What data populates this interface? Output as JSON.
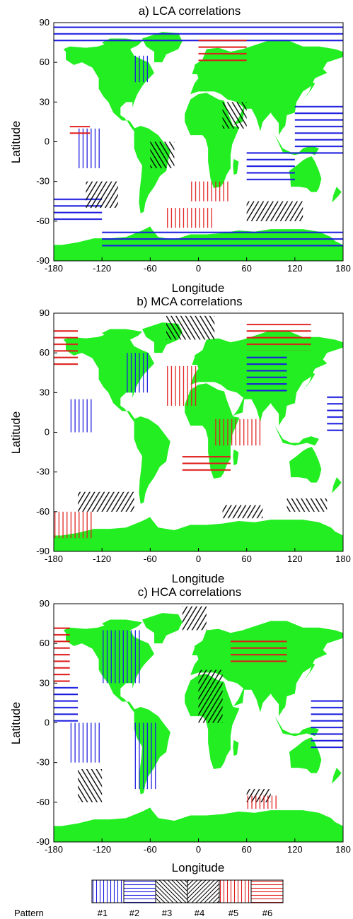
{
  "chart_data": [
    {
      "type": "map",
      "title": "a) LCA correlations",
      "xlabel": "Longitude",
      "ylabel": "Latitude",
      "xlim": [
        -180,
        180
      ],
      "ylim": [
        -90,
        90
      ],
      "xticks": [
        "-180",
        "-120",
        "-60",
        "0",
        "60",
        "120",
        "180"
      ],
      "yticks": [
        "90",
        "60",
        "30",
        "0",
        "-30",
        "-60",
        "-90"
      ],
      "regions": [
        {
          "pattern": 1,
          "lon": [
            -80,
            -60
          ],
          "lat": [
            45,
            65
          ]
        },
        {
          "pattern": 1,
          "lon": [
            -150,
            -120
          ],
          "lat": [
            -20,
            10
          ]
        },
        {
          "pattern": 2,
          "lon": [
            -180,
            180
          ],
          "lat": [
            75,
            88
          ]
        },
        {
          "pattern": 2,
          "lon": [
            120,
            180
          ],
          "lat": [
            -10,
            30
          ]
        },
        {
          "pattern": 2,
          "lon": [
            60,
            120
          ],
          "lat": [
            -30,
            -5
          ]
        },
        {
          "pattern": 2,
          "lon": [
            -180,
            -120
          ],
          "lat": [
            -60,
            -40
          ]
        },
        {
          "pattern": 2,
          "lon": [
            -120,
            180
          ],
          "lat": [
            -80,
            -65
          ]
        },
        {
          "pattern": 3,
          "lon": [
            -140,
            -100
          ],
          "lat": [
            -50,
            -30
          ]
        },
        {
          "pattern": 3,
          "lon": [
            60,
            130
          ],
          "lat": [
            -60,
            -45
          ]
        },
        {
          "pattern": 4,
          "lon": [
            -60,
            -30
          ],
          "lat": [
            -20,
            0
          ]
        },
        {
          "pattern": 4,
          "lon": [
            30,
            60
          ],
          "lat": [
            10,
            30
          ]
        },
        {
          "pattern": 5,
          "lon": [
            -10,
            40
          ],
          "lat": [
            -45,
            -30
          ]
        },
        {
          "pattern": 5,
          "lon": [
            -40,
            20
          ],
          "lat": [
            -65,
            -50
          ]
        },
        {
          "pattern": 6,
          "lon": [
            0,
            60
          ],
          "lat": [
            60,
            80
          ]
        },
        {
          "pattern": 6,
          "lon": [
            -160,
            -135
          ],
          "lat": [
            5,
            12
          ]
        }
      ]
    },
    {
      "type": "map",
      "title": "b) MCA correlations",
      "xlabel": "Longitude",
      "ylabel": "Latitude",
      "xlim": [
        -180,
        180
      ],
      "ylim": [
        -90,
        90
      ],
      "xticks": [
        "-180",
        "-120",
        "-60",
        "0",
        "60",
        "120",
        "180"
      ],
      "yticks": [
        "90",
        "60",
        "30",
        "0",
        "-30",
        "-60",
        "-90"
      ],
      "regions": [
        {
          "pattern": 1,
          "lon": [
            -90,
            -60
          ],
          "lat": [
            30,
            60
          ]
        },
        {
          "pattern": 1,
          "lon": [
            -160,
            -130
          ],
          "lat": [
            0,
            25
          ]
        },
        {
          "pattern": 2,
          "lon": [
            60,
            110
          ],
          "lat": [
            30,
            60
          ]
        },
        {
          "pattern": 2,
          "lon": [
            160,
            180
          ],
          "lat": [
            0,
            30
          ]
        },
        {
          "pattern": 3,
          "lon": [
            -150,
            -80
          ],
          "lat": [
            -60,
            -45
          ]
        },
        {
          "pattern": 3,
          "lon": [
            30,
            80
          ],
          "lat": [
            -65,
            -55
          ]
        },
        {
          "pattern": 4,
          "lon": [
            -40,
            20
          ],
          "lat": [
            70,
            88
          ]
        },
        {
          "pattern": 4,
          "lon": [
            110,
            160
          ],
          "lat": [
            -60,
            -50
          ]
        },
        {
          "pattern": 5,
          "lon": [
            -40,
            0
          ],
          "lat": [
            20,
            50
          ]
        },
        {
          "pattern": 5,
          "lon": [
            -180,
            -130
          ],
          "lat": [
            -80,
            -60
          ]
        },
        {
          "pattern": 5,
          "lon": [
            20,
            80
          ],
          "lat": [
            -10,
            10
          ]
        },
        {
          "pattern": 6,
          "lon": [
            60,
            140
          ],
          "lat": [
            62,
            82
          ]
        },
        {
          "pattern": 6,
          "lon": [
            -180,
            -150
          ],
          "lat": [
            50,
            78
          ]
        },
        {
          "pattern": 6,
          "lon": [
            -20,
            40
          ],
          "lat": [
            -30,
            -15
          ]
        }
      ]
    },
    {
      "type": "map",
      "title": "c) HCA correlations",
      "xlabel": "Longitude",
      "ylabel": "Latitude",
      "xlim": [
        -180,
        180
      ],
      "ylim": [
        -90,
        90
      ],
      "xticks": [
        "-180",
        "-120",
        "-60",
        "0",
        "60",
        "120",
        "180"
      ],
      "yticks": [
        "90",
        "60",
        "30",
        "0",
        "-30",
        "-60",
        "-90"
      ],
      "regions": [
        {
          "pattern": 1,
          "lon": [
            -120,
            -70
          ],
          "lat": [
            30,
            70
          ]
        },
        {
          "pattern": 1,
          "lon": [
            -80,
            -50
          ],
          "lat": [
            -50,
            0
          ]
        },
        {
          "pattern": 1,
          "lon": [
            -160,
            -120
          ],
          "lat": [
            -30,
            0
          ]
        },
        {
          "pattern": 2,
          "lon": [
            -180,
            -150
          ],
          "lat": [
            0,
            30
          ]
        },
        {
          "pattern": 2,
          "lon": [
            140,
            180
          ],
          "lat": [
            -20,
            20
          ]
        },
        {
          "pattern": 3,
          "lon": [
            -20,
            10
          ],
          "lat": [
            70,
            88
          ]
        },
        {
          "pattern": 3,
          "lon": [
            0,
            30
          ],
          "lat": [
            0,
            40
          ]
        },
        {
          "pattern": 3,
          "lon": [
            60,
            90
          ],
          "lat": [
            -60,
            -50
          ]
        },
        {
          "pattern": 4,
          "lon": [
            -150,
            -120
          ],
          "lat": [
            -60,
            -35
          ]
        },
        {
          "pattern": 5,
          "lon": [
            60,
            100
          ],
          "lat": [
            -65,
            -55
          ]
        },
        {
          "pattern": 6,
          "lon": [
            40,
            110
          ],
          "lat": [
            45,
            65
          ]
        },
        {
          "pattern": 6,
          "lon": [
            -180,
            -160
          ],
          "lat": [
            30,
            75
          ]
        }
      ]
    }
  ],
  "legend": {
    "label": "Pattern",
    "items": [
      "#1",
      "#2",
      "#3",
      "#4",
      "#5",
      "#6"
    ]
  },
  "colors": {
    "land": "#22ee22",
    "pattern_blue": "#1a1ae0",
    "pattern_black": "#000000",
    "pattern_red": "#e01a1a"
  }
}
